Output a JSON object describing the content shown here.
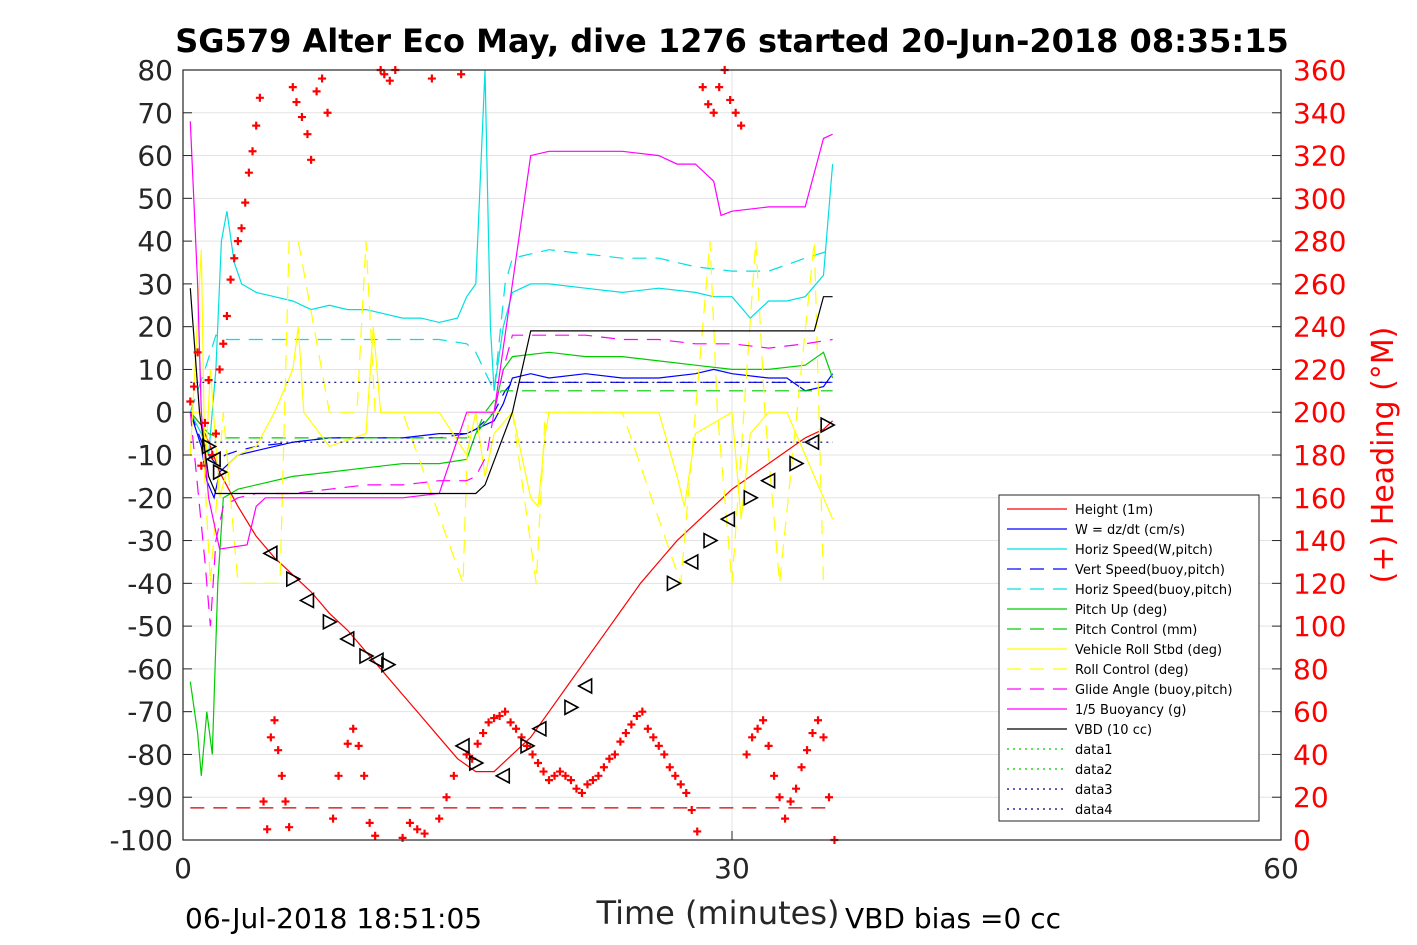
{
  "chart_data": {
    "type": "line",
    "title": "SG579 Alter Eco May, dive 1276 started 20-Jun-2018 08:35:15",
    "xlabel": "Time (minutes)",
    "ylabel_right": "(+) Heading (°M)",
    "xlim": [
      0,
      60
    ],
    "ylim": [
      -100,
      80
    ],
    "ylim_right": [
      0,
      360
    ],
    "x_ticks": [
      0,
      30,
      60
    ],
    "y_ticks": [
      80,
      70,
      60,
      50,
      40,
      30,
      20,
      10,
      0,
      -10,
      -20,
      -30,
      -40,
      -50,
      -60,
      -70,
      -80,
      -90,
      -100
    ],
    "y_right_ticks": [
      360,
      340,
      320,
      300,
      280,
      260,
      240,
      220,
      200,
      180,
      160,
      140,
      120,
      100,
      80,
      60,
      40,
      20,
      0
    ],
    "grid": true,
    "legend_position": "lower-right",
    "footer_left": "06-Jul-2018 18:51:05",
    "footer_right": "VBD bias =0 cc",
    "series": [
      {
        "name": "Height (1m)",
        "color": "#ff0000",
        "dash": "solid",
        "x": [
          0.4,
          1.0,
          1.5,
          2,
          3,
          4,
          5,
          6,
          7,
          8,
          9,
          10,
          11,
          12,
          13,
          14,
          15,
          16,
          16.5,
          17,
          18,
          19,
          20,
          21,
          22,
          23,
          24,
          25,
          26,
          27,
          28,
          29,
          30,
          31,
          32,
          33,
          34,
          35,
          35.5
        ],
        "y": [
          0,
          -3,
          -8,
          -14,
          -22,
          -29,
          -34,
          -38,
          -42,
          -47,
          -51,
          -56,
          -61,
          -66,
          -71,
          -76,
          -81,
          -84,
          -84,
          -84,
          -80,
          -76,
          -70,
          -64,
          -58,
          -52,
          -46,
          -40,
          -35,
          -30,
          -26,
          -22,
          -18,
          -15,
          -12,
          -9,
          -6,
          -4,
          -2
        ]
      },
      {
        "name": "W = dz/dt (cm/s)",
        "color": "#0000ff",
        "dash": "solid",
        "x": [
          0.4,
          1.0,
          1.3,
          1.7,
          2,
          2.5,
          3,
          4,
          5,
          6,
          8,
          10,
          12,
          14,
          15.5,
          16,
          17,
          17.5,
          18,
          19,
          20,
          22,
          24,
          26,
          28,
          29,
          30,
          32,
          33,
          34,
          35,
          35.5
        ],
        "y": [
          0,
          -8,
          -16,
          -20,
          -14,
          -12,
          -10,
          -9,
          -8,
          -7,
          -6,
          -6,
          -6,
          -5,
          -5,
          -4,
          -2,
          2,
          8,
          9,
          8,
          9,
          8,
          8,
          9,
          10,
          9,
          8,
          8,
          5,
          6,
          9
        ]
      },
      {
        "name": "Horiz Speed(W,pitch)",
        "color": "#00e0e0",
        "dash": "solid",
        "x": [
          0.4,
          1.0,
          1.4,
          1.8,
          2.1,
          2.4,
          2.8,
          3.2,
          4,
          5,
          6,
          7,
          8,
          9,
          10,
          11,
          12,
          13,
          14,
          15,
          15.5,
          16,
          16.5,
          16.8,
          17,
          17.5,
          18,
          19,
          20,
          22,
          24,
          26,
          28,
          29,
          30,
          31,
          32,
          33,
          34,
          35,
          35.5
        ],
        "y": [
          0,
          -5,
          -10,
          10,
          40,
          47,
          35,
          30,
          28,
          27,
          26,
          24,
          25,
          24,
          24,
          23,
          22,
          22,
          21,
          22,
          27,
          30,
          80,
          20,
          5,
          20,
          28,
          30,
          30,
          29,
          28,
          29,
          28,
          27,
          27,
          22,
          26,
          26,
          27,
          32,
          58
        ]
      },
      {
        "name": "Vert Speed(buoy,pitch)",
        "color": "#0000ff",
        "dash": "longdash",
        "x": [
          0.4,
          1.2,
          1.8,
          2.3,
          3,
          4,
          6,
          8,
          10,
          12,
          14,
          15.5,
          16,
          17,
          17.6,
          18,
          20,
          22,
          24,
          26,
          28,
          30,
          32,
          34,
          35.5
        ],
        "y": [
          0,
          -9,
          -12,
          -10,
          -9,
          -8,
          -7,
          -6,
          -6,
          -6,
          -6,
          -5,
          -4,
          0,
          5,
          7,
          7,
          7,
          7,
          7,
          7,
          7,
          7,
          7,
          7
        ]
      },
      {
        "name": "Horiz Speed(buoy,pitch)",
        "color": "#00e0e0",
        "dash": "longdash",
        "x": [
          0.4,
          1.2,
          1.8,
          2.3,
          3,
          4,
          6,
          8,
          10,
          12,
          14,
          15.5,
          16,
          17,
          17.6,
          18,
          20,
          22,
          24,
          26,
          28,
          30,
          32,
          34,
          35.5
        ],
        "y": [
          0,
          10,
          18,
          17,
          17,
          17,
          17,
          17,
          17,
          17,
          17,
          16,
          14,
          5,
          30,
          36,
          38,
          37,
          36,
          36,
          34,
          33,
          33,
          36,
          38
        ]
      },
      {
        "name": "Pitch Up (deg)",
        "color": "#00cc00",
        "dash": "solid",
        "x": [
          0.4,
          0.8,
          1.0,
          1.3,
          1.6,
          1.9,
          2.2,
          3,
          4,
          6,
          8,
          10,
          12,
          14,
          15.5,
          16,
          17,
          17.5,
          18,
          20,
          22,
          24,
          26,
          28,
          30,
          32,
          34,
          35,
          35.5
        ],
        "y": [
          -63,
          -75,
          -85,
          -70,
          -80,
          -40,
          -20,
          -18,
          -17,
          -15,
          -14,
          -13,
          -12,
          -12,
          -11,
          -5,
          0,
          10,
          13,
          14,
          13,
          13,
          12,
          11,
          10,
          10,
          11,
          14,
          8
        ]
      },
      {
        "name": "Pitch Control (mm)",
        "color": "#00cc00",
        "dash": "longdash",
        "x": [
          0.4,
          1.4,
          2.0,
          4,
          6,
          8,
          10,
          12,
          14,
          15.5,
          16,
          16.5,
          17.4,
          18,
          20,
          22,
          24,
          26,
          28,
          30,
          32,
          34,
          35.5
        ],
        "y": [
          0,
          -5,
          -6,
          -6,
          -6,
          -6,
          -6,
          -6,
          -6,
          -6,
          -5,
          0,
          5,
          5,
          5,
          5,
          5,
          5,
          5,
          5,
          5,
          5,
          5
        ]
      },
      {
        "name": "Vehicle Roll Stbd (deg)",
        "color": "#ffff00",
        "dash": "solid",
        "x": [
          0.4,
          1.0,
          1.2,
          1.5,
          2.0,
          2.5,
          3.0,
          4,
          5,
          6,
          6.3,
          6.6,
          8,
          10,
          10.4,
          10.8,
          12,
          14,
          15.5,
          16,
          16.5,
          17,
          18,
          19,
          19.4,
          19.8,
          20,
          22,
          24,
          26,
          27,
          27.4,
          28,
          30,
          30.5,
          31,
          32,
          33,
          34,
          35,
          35.5
        ],
        "y": [
          -10,
          38,
          -15,
          10,
          -20,
          -12,
          -10,
          -8,
          0,
          10,
          20,
          0,
          -8,
          -5,
          20,
          0,
          0,
          0,
          -10,
          0,
          -15,
          -5,
          0,
          -20,
          -22,
          -5,
          0,
          0,
          0,
          0,
          -15,
          -22,
          -5,
          0,
          -25,
          -5,
          0,
          0,
          -10,
          -20,
          -25
        ]
      },
      {
        "name": "Roll Control (deg)",
        "color": "#ffff00",
        "dash": "longdash",
        "x": [
          0.4,
          1.0,
          1.5,
          2.2,
          3.0,
          4,
          5.3,
          5.8,
          6.3,
          8,
          9.5,
          10,
          10.5,
          12,
          15.3,
          15.6,
          16.1,
          18,
          19.3,
          19.8,
          20.3,
          22,
          24,
          27.2,
          28.8,
          29.2,
          30,
          31.3,
          31.8,
          32.6,
          34.5,
          35
        ],
        "y": [
          0,
          0,
          -40,
          0,
          -40,
          -40,
          -40,
          40,
          40,
          0,
          0,
          40,
          0,
          0,
          -40,
          0,
          0,
          0,
          -40,
          0,
          0,
          0,
          0,
          -40,
          40,
          0,
          -40,
          40,
          0,
          -40,
          40,
          -40
        ]
      },
      {
        "name": "Glide Angle (buoy,pitch)",
        "color": "#ff00ff",
        "dash": "longdash",
        "x": [
          0.4,
          1.2,
          1.5,
          1.8,
          2.2,
          3,
          4,
          6,
          8,
          10,
          12,
          14,
          15.5,
          16,
          16.6,
          17,
          17.5,
          18,
          20,
          22,
          24,
          26,
          28,
          30,
          32,
          34,
          35.5
        ],
        "y": [
          0,
          -35,
          -50,
          -30,
          -22,
          -20,
          -19,
          -19,
          -18,
          -17,
          -17,
          -16,
          -16,
          -15,
          -10,
          0,
          10,
          18,
          18,
          18,
          17,
          17,
          16,
          16,
          15,
          16,
          17
        ]
      },
      {
        "name": "1/5 Buoyancy (g)",
        "color": "#ff00ff",
        "dash": "solid",
        "x": [
          0.4,
          0.8,
          1.0,
          1.4,
          2.0,
          3.5,
          4.0,
          4.5,
          5,
          8,
          10,
          12,
          14,
          15.5,
          16.5,
          17,
          18,
          19,
          20,
          22,
          24,
          26,
          27,
          28,
          29,
          29.4,
          30,
          32,
          34,
          35,
          35.5
        ],
        "y": [
          68,
          30,
          0,
          -20,
          -32,
          -31,
          -22,
          -20,
          -20,
          -20,
          -20,
          -20,
          -19,
          0,
          0,
          0,
          30,
          60,
          61,
          61,
          61,
          60,
          58,
          58,
          54,
          46,
          47,
          48,
          48,
          64,
          65
        ]
      },
      {
        "name": "VBD (10 cc)",
        "color": "#000000",
        "dash": "solid",
        "x": [
          0.4,
          0.9,
          1.4,
          1.8,
          2.4,
          3,
          16,
          16.5,
          18,
          19,
          20,
          25,
          30,
          34.5,
          35,
          35.5
        ],
        "y": [
          29,
          0,
          -15,
          -19,
          -19,
          -19,
          -19,
          -17,
          0,
          19,
          19,
          19,
          19,
          19,
          27,
          27
        ]
      },
      {
        "name": "data1",
        "color": "#00cc00",
        "dash": "dotted",
        "x": [],
        "y": []
      },
      {
        "name": "data2",
        "color": "#00cc00",
        "dash": "dotted",
        "x": [],
        "y": []
      },
      {
        "name": "data3",
        "color": "#000080",
        "dash": "dotted",
        "x": [
          0.4,
          35.5
        ],
        "y": [
          7,
          7
        ]
      },
      {
        "name": "data4",
        "color": "#000080",
        "dash": "dotted",
        "x": [
          0.4,
          35.5
        ],
        "y": [
          -7,
          -7
        ]
      }
    ],
    "overlays": {
      "bottom_reference_line": {
        "color": "#cc0000",
        "dash": "longdash",
        "x": [
          0.4,
          35.5
        ],
        "y": [
          -92.5,
          -92.5
        ]
      },
      "heading_points": {
        "color": "#ff0000",
        "marker": "+",
        "axis": "right",
        "x": [
          0.4,
          0.6,
          0.8,
          1.0,
          1.2,
          1.4,
          1.6,
          1.8,
          2.0,
          2.2,
          2.4,
          2.6,
          2.8,
          3.0,
          3.2,
          3.4,
          3.6,
          3.8,
          4.0,
          4.2,
          4.4,
          4.6,
          4.8,
          5.0,
          5.2,
          5.4,
          5.6,
          5.8,
          6.0,
          6.2,
          6.5,
          6.8,
          7.0,
          7.3,
          7.6,
          7.9,
          8.2,
          8.5,
          9.0,
          9.3,
          9.6,
          9.9,
          10.2,
          10.5,
          10.8,
          11.0,
          11.3,
          11.6,
          12.0,
          12.4,
          12.8,
          13.2,
          13.6,
          14.0,
          14.4,
          14.8,
          15.2,
          15.5,
          15.8,
          16.1,
          16.4,
          16.7,
          17.0,
          17.3,
          17.6,
          17.9,
          18.2,
          18.5,
          18.8,
          19.1,
          19.4,
          19.7,
          20.0,
          20.3,
          20.6,
          20.9,
          21.2,
          21.5,
          21.8,
          22.1,
          22.4,
          22.7,
          23.0,
          23.3,
          23.6,
          23.9,
          24.2,
          24.5,
          24.8,
          25.1,
          25.4,
          25.7,
          26.0,
          26.3,
          26.6,
          26.9,
          27.2,
          27.5,
          27.8,
          28.1,
          28.4,
          28.7,
          29.0,
          29.3,
          29.6,
          29.9,
          30.2,
          30.5,
          30.8,
          31.1,
          31.4,
          31.7,
          32.0,
          32.3,
          32.6,
          32.9,
          33.2,
          33.5,
          33.8,
          34.1,
          34.4,
          34.7,
          35.0,
          35.3,
          35.6
        ],
        "y": [
          205,
          212,
          228,
          175,
          195,
          215,
          180,
          190,
          220,
          232,
          245,
          262,
          272,
          280,
          286,
          298,
          312,
          322,
          334,
          347,
          18,
          5,
          48,
          56,
          42,
          30,
          18,
          6,
          352,
          345,
          338,
          330,
          318,
          350,
          356,
          340,
          10,
          30,
          45,
          52,
          44,
          30,
          8,
          2,
          362,
          358,
          355,
          360,
          1,
          8,
          5,
          3,
          356,
          10,
          20,
          30,
          358,
          40,
          38,
          45,
          50,
          55,
          57,
          58,
          60,
          55,
          52,
          48,
          44,
          40,
          36,
          32,
          28,
          30,
          32,
          30,
          28,
          24,
          22,
          26,
          28,
          30,
          34,
          38,
          40,
          46,
          50,
          54,
          58,
          60,
          52,
          48,
          44,
          40,
          34,
          30,
          26,
          22,
          14,
          4,
          352,
          344,
          340,
          352,
          360,
          346,
          340,
          334,
          40,
          48,
          52,
          56,
          44,
          30,
          20,
          10,
          18,
          24,
          34,
          42,
          50,
          56,
          48,
          20,
          0
        ]
      },
      "triangle_markers": {
        "color": "#000000",
        "x": [
          1.4,
          1.7,
          2.0,
          4.8,
          6.0,
          6.8,
          8.0,
          9.0,
          10.0,
          10.6,
          11.2,
          15.3,
          16.0,
          17.5,
          18.8,
          19.5,
          21.2,
          22.0,
          26.8,
          27.8,
          28.8,
          29.8,
          31.0,
          32.0,
          33.5,
          34.4,
          35.2
        ],
        "y": [
          -8,
          -11,
          -14,
          -33,
          -39,
          -44,
          -49,
          -53,
          -57,
          -58,
          -59,
          -78,
          -82,
          -85,
          -78,
          -74,
          -69,
          -64,
          -40,
          -35,
          -30,
          -25,
          -20,
          -16,
          -12,
          -7,
          -3
        ]
      }
    }
  }
}
